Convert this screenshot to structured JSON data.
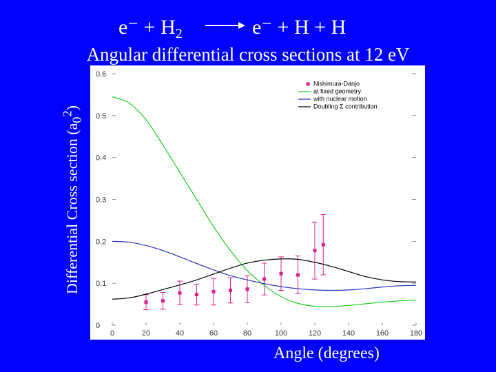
{
  "header": {
    "reactant_left": "e⁻ + H",
    "reactant_sub": "2",
    "product": "e⁻ + H + H",
    "subtitle": "Angular differential cross sections at 12 eV"
  },
  "chart_data": {
    "type": "line",
    "xlabel": "Angle (degrees)",
    "ylabel_main": "Differential Cross section (a",
    "ylabel_sub": "0",
    "ylabel_sup": "2",
    "ylabel_end": ")",
    "xlim": [
      0,
      180
    ],
    "ylim": [
      0,
      0.6
    ],
    "x_ticks": [
      "0",
      "20",
      "40",
      "60",
      "80",
      "100",
      "120",
      "140",
      "160",
      "180"
    ],
    "y_ticks": [
      "0",
      "0.1",
      "0.2",
      "0.3",
      "0.4",
      "0.5",
      "0.6"
    ],
    "grid": false,
    "legend_position": "top-right",
    "series": [
      {
        "name": "Nishimura-Danjo",
        "kind": "points",
        "color": "#e0208c",
        "x": [
          20,
          30,
          40,
          50,
          60,
          70,
          80,
          90,
          100,
          110,
          120,
          125
        ],
        "y": [
          0.055,
          0.058,
          0.077,
          0.073,
          0.08,
          0.083,
          0.086,
          0.11,
          0.123,
          0.12,
          0.178,
          0.192
        ],
        "err": [
          0.018,
          0.02,
          0.028,
          0.025,
          0.032,
          0.03,
          0.032,
          0.038,
          0.04,
          0.045,
          0.068,
          0.072
        ]
      },
      {
        "name": "at fixed geometry",
        "kind": "line",
        "color": "#22cc22",
        "x": [
          0,
          10,
          20,
          30,
          40,
          50,
          60,
          70,
          80,
          90,
          100,
          110,
          120,
          130,
          140,
          150,
          160,
          170,
          180
        ],
        "y": [
          0.545,
          0.53,
          0.49,
          0.43,
          0.365,
          0.3,
          0.235,
          0.178,
          0.13,
          0.095,
          0.068,
          0.052,
          0.045,
          0.044,
          0.047,
          0.051,
          0.055,
          0.058,
          0.06
        ]
      },
      {
        "name": "with nuclear motion",
        "kind": "line",
        "color": "#2233bb",
        "x": [
          0,
          10,
          20,
          30,
          40,
          50,
          60,
          70,
          80,
          90,
          100,
          110,
          120,
          130,
          140,
          150,
          160,
          170,
          180
        ],
        "y": [
          0.2,
          0.198,
          0.19,
          0.178,
          0.163,
          0.147,
          0.132,
          0.118,
          0.108,
          0.099,
          0.092,
          0.087,
          0.084,
          0.083,
          0.084,
          0.087,
          0.091,
          0.094,
          0.095
        ]
      },
      {
        "name": "Doubling Σ contribution",
        "kind": "line",
        "color": "#000000",
        "x": [
          0,
          10,
          20,
          30,
          40,
          50,
          60,
          70,
          80,
          90,
          100,
          110,
          120,
          130,
          140,
          150,
          160,
          170,
          180
        ],
        "y": [
          0.062,
          0.065,
          0.074,
          0.085,
          0.096,
          0.108,
          0.122,
          0.136,
          0.148,
          0.155,
          0.158,
          0.157,
          0.15,
          0.14,
          0.128,
          0.116,
          0.108,
          0.104,
          0.103
        ]
      }
    ]
  }
}
